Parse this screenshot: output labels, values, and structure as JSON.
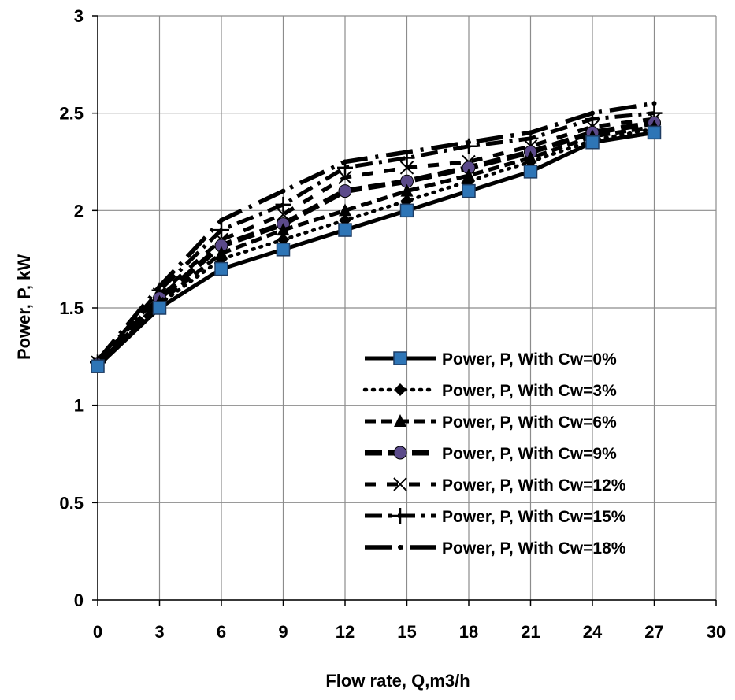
{
  "chart_data": {
    "type": "line",
    "title": "",
    "xlabel": "Flow rate, Q,m3/h",
    "ylabel": "Power, P, kW",
    "xlim": [
      0,
      30
    ],
    "ylim": [
      0,
      3
    ],
    "xticks": [
      "0",
      "3",
      "6",
      "9",
      "12",
      "15",
      "18",
      "21",
      "24",
      "27",
      "30"
    ],
    "yticks": [
      "0",
      "0.5",
      "1",
      "1.5",
      "2",
      "2.5",
      "3"
    ],
    "grid": true,
    "legend_position": "bottom-right",
    "x": [
      0,
      3,
      6,
      9,
      12,
      15,
      18,
      21,
      24,
      27
    ],
    "series": [
      {
        "name": "Power, P, With Cw=0%",
        "values": [
          1.2,
          1.5,
          1.7,
          1.8,
          1.9,
          2.0,
          2.1,
          2.2,
          2.35,
          2.4
        ],
        "dash": "solid",
        "marker": "square",
        "markerColor": "#2e75b6"
      },
      {
        "name": "Power, P, With Cw=3%",
        "values": [
          1.2,
          1.52,
          1.75,
          1.85,
          1.95,
          2.05,
          2.15,
          2.25,
          2.36,
          2.42
        ],
        "dash": "dot",
        "marker": "diamond",
        "markerColor": "#000000"
      },
      {
        "name": "Power, P, With Cw=6%",
        "values": [
          1.21,
          1.53,
          1.78,
          1.9,
          2.0,
          2.1,
          2.18,
          2.27,
          2.38,
          2.43
        ],
        "dash": "dash",
        "marker": "triangle",
        "markerColor": "#000000"
      },
      {
        "name": "Power, P, With Cw=9%",
        "values": [
          1.21,
          1.55,
          1.82,
          1.93,
          2.1,
          2.15,
          2.22,
          2.3,
          2.4,
          2.45
        ],
        "dash": "longdash",
        "marker": "circle",
        "markerColor": "#5b4a8a"
      },
      {
        "name": "Power, P, With Cw=12%",
        "values": [
          1.22,
          1.57,
          1.85,
          1.98,
          2.17,
          2.22,
          2.25,
          2.33,
          2.43,
          2.47
        ],
        "dash": "dashgap",
        "marker": "x",
        "markerColor": "#000000"
      },
      {
        "name": "Power, P, With Cw=15%",
        "values": [
          1.22,
          1.59,
          1.9,
          2.03,
          2.22,
          2.27,
          2.33,
          2.37,
          2.47,
          2.5
        ],
        "dash": "dashdot",
        "marker": "plus",
        "markerColor": "#000000"
      },
      {
        "name": "Power, P, With Cw=18%",
        "values": [
          1.23,
          1.61,
          1.95,
          2.1,
          2.25,
          2.3,
          2.35,
          2.4,
          2.5,
          2.55
        ],
        "dash": "longdashdot",
        "marker": "dot",
        "markerColor": "#000000"
      }
    ]
  }
}
